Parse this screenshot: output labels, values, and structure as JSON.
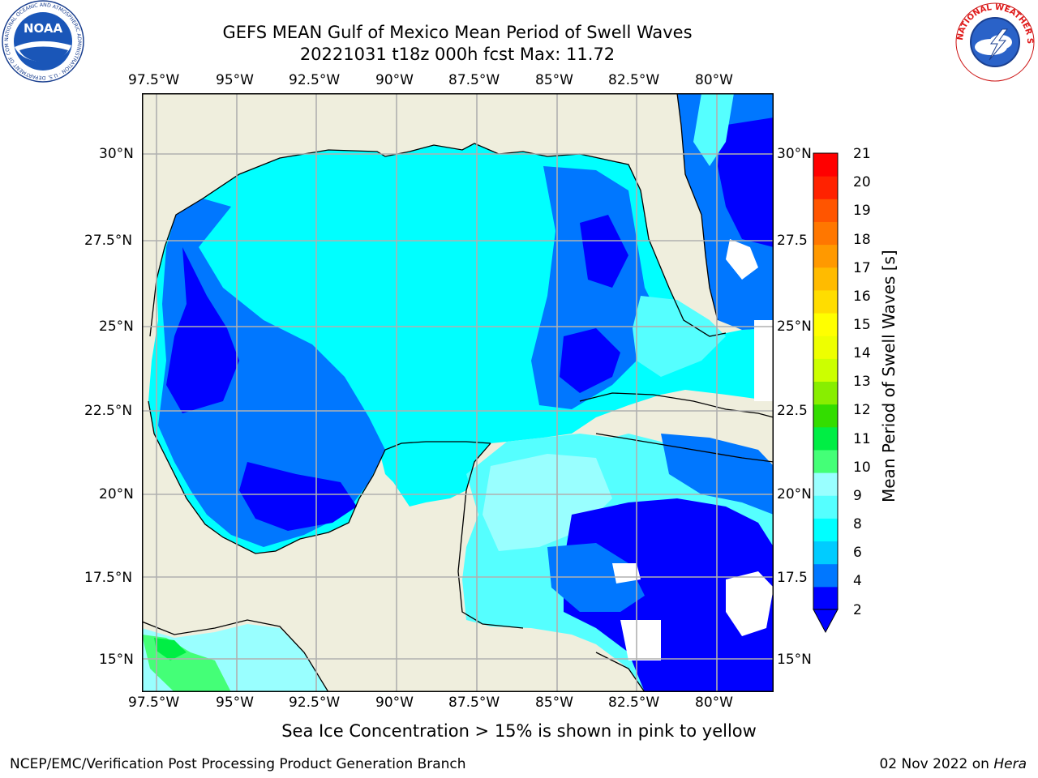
{
  "title": {
    "line1": "GEFS MEAN Gulf of Mexico Mean Period of Swell Waves",
    "line2": "20221031 t18z 000h fcst   Max: 11.72"
  },
  "map": {
    "lon_ticks": [
      "97.5°W",
      "95°W",
      "92.5°W",
      "90°W",
      "87.5°W",
      "85°W",
      "82.5°W",
      "80°W"
    ],
    "lat_ticks_left": [
      "30°N",
      "27.5°N",
      "25°N",
      "22.5°N",
      "20°N",
      "17.5°N",
      "15°N"
    ],
    "lat_ticks_right": [
      "30°N",
      "27.5",
      "25°N",
      "22.5",
      "20°N",
      "17.5",
      "15°N"
    ],
    "land_color": "#efeedd",
    "grid_color": "#b0b0b0"
  },
  "colorbar": {
    "label": "Mean Period of Swell Waves [s]",
    "ticks_top": [
      "21",
      "20",
      "19",
      "18",
      "17",
      "16",
      "15",
      "14",
      "13",
      "12",
      "11",
      "10"
    ],
    "ticks_bottom": [
      "9",
      "8",
      "6",
      "4",
      "2"
    ],
    "colors": [
      "#0000ff",
      "#0077ff",
      "#00ccff",
      "#00ffff",
      "#55ffff",
      "#99ffff",
      "#44ff77",
      "#00ee44",
      "#33dd00",
      "#88ee00",
      "#ccff00",
      "#eeff00",
      "#ffff00",
      "#ffdd00",
      "#ffbb00",
      "#ff9900",
      "#ff7700",
      "#ff5500",
      "#ff2200",
      "#ff0000"
    ]
  },
  "note": "Sea Ice Concentration > 15% is shown in pink to yellow",
  "footer": {
    "left": "NCEP/EMC/Verification Post Processing Product Generation Branch",
    "date": "02 Nov 2022 on",
    "machine": "Hera"
  },
  "logos": {
    "noaa_text": "NOAA",
    "noaa_ring": "NATIONAL OCEANIC AND ATMOSPHERIC ADMINISTRATION · U.S. DEPARTMENT OF COMMERCE ·",
    "nws_ring": "NATIONAL WEATHER SERVICE"
  }
}
